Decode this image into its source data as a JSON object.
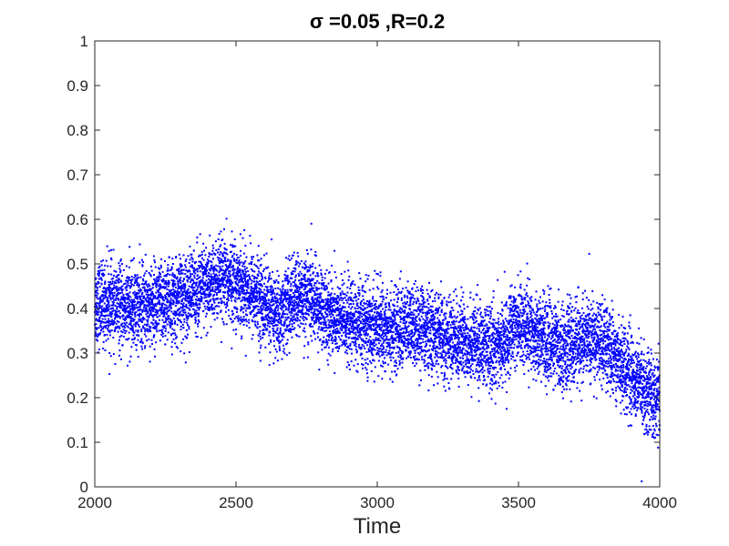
{
  "chart_data": {
    "type": "scatter",
    "title": "σ =0.05 ,R=0.2",
    "xlabel": "Time",
    "ylabel": "",
    "xlim": [
      2000,
      4000
    ],
    "ylim": [
      0,
      1
    ],
    "x_ticks": [
      2000,
      2500,
      3000,
      3500,
      4000
    ],
    "x_tick_labels": [
      "2000",
      "2500",
      "3000",
      "3500",
      "4000"
    ],
    "y_ticks": [
      0,
      0.1,
      0.2,
      0.3,
      0.4,
      0.5,
      0.6,
      0.7,
      0.8,
      0.9,
      1
    ],
    "y_tick_labels": [
      "0",
      "0.1",
      "0.2",
      "0.3",
      "0.4",
      "0.5",
      "0.6",
      "0.7",
      "0.8",
      "0.9",
      "1"
    ],
    "grid": false,
    "marker_color": "#0000ff",
    "series": [
      {
        "trend": {
          "x": [
            2000,
            2050,
            2100,
            2150,
            2200,
            2250,
            2300,
            2350,
            2400,
            2450,
            2500,
            2550,
            2600,
            2650,
            2700,
            2750,
            2800,
            2850,
            2900,
            2950,
            3000,
            3050,
            3100,
            3150,
            3200,
            3250,
            3300,
            3350,
            3400,
            3450,
            3500,
            3550,
            3600,
            3650,
            3700,
            3750,
            3800,
            3850,
            3900,
            3950,
            4000
          ],
          "y": [
            0.41,
            0.41,
            0.4,
            0.4,
            0.41,
            0.41,
            0.42,
            0.44,
            0.45,
            0.46,
            0.46,
            0.44,
            0.41,
            0.38,
            0.42,
            0.43,
            0.4,
            0.38,
            0.37,
            0.36,
            0.36,
            0.35,
            0.36,
            0.36,
            0.34,
            0.33,
            0.33,
            0.32,
            0.31,
            0.32,
            0.37,
            0.35,
            0.33,
            0.31,
            0.32,
            0.33,
            0.32,
            0.29,
            0.25,
            0.22,
            0.19
          ]
        },
        "spread": 0.045,
        "point_count": 9000
      }
    ]
  }
}
